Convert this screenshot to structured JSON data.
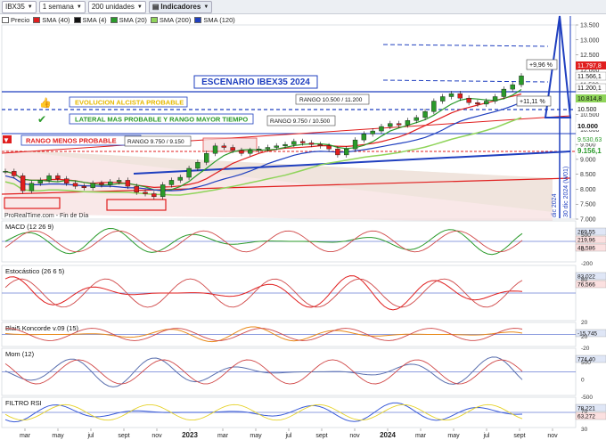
{
  "toolbar": {
    "symbol": "IBX35",
    "period": "1 semana",
    "units": "200 unidades",
    "indicators_label": "Indicadores"
  },
  "legend": [
    {
      "label": "Precio",
      "color": "#ffffff"
    },
    {
      "label": "SMA (40)",
      "color": "#e01e1e"
    },
    {
      "label": "SMA (4)",
      "color": "#111111"
    },
    {
      "label": "SMA (20)",
      "color": "#2a9a2a"
    },
    {
      "label": "SMA (200)",
      "color": "#8fd45a"
    },
    {
      "label": "SMA (120)",
      "color": "#1f3fbf"
    }
  ],
  "annotations": {
    "scenario_title": "ESCENARIO IBEX35 2024",
    "bullish_label": "EVOLUCION ALCISTA PROBABLE",
    "lateral_label": "LATERAL MAS PROBABLE Y RANGO MAYOR TIEMPO",
    "bearish_label": "RANGO MENOS PROBABLE",
    "range_1": "RANGO 10.500 / 11.200",
    "range_2": "RANGO 9.750 / 10.500",
    "range_3": "RANGO 9.750 / 9.150",
    "pct_up": "+9,96 %",
    "pct_up2": "+11,11 %",
    "date_marker_1": "dic 2024",
    "date_marker_2": "30 dic 2024 (W01)",
    "source": "ProRealTime.com - Fin de Día"
  },
  "price_labels": {
    "last": "11.797,8",
    "l2": "11.566,1",
    "l3": "11.200,1",
    "l4": "10.814,8",
    "l5": "10.500",
    "l6": "10.000",
    "l7": "9.530,63",
    "l8": "9.156,1"
  },
  "chart_data": {
    "type": "line",
    "title": "",
    "y_ticks": [
      "13.500",
      "13.000",
      "12.500",
      "12.000",
      "11.500",
      "11.000",
      "10.500",
      "10.000",
      "9.500",
      "9.000",
      "8.500",
      "8.000",
      "7.500",
      "7.000"
    ],
    "x_ticks": [
      "mar",
      "may",
      "jul",
      "sept",
      "nov",
      "2023",
      "mar",
      "may",
      "jul",
      "sept",
      "nov",
      "2024",
      "mar",
      "may",
      "jul",
      "sept",
      "nov"
    ],
    "price": [
      8600,
      8450,
      7950,
      8200,
      8300,
      8450,
      8350,
      8200,
      8100,
      8050,
      8200,
      8150,
      8250,
      8300,
      8100,
      7900,
      7850,
      7750,
      8150,
      8300,
      8400,
      8700,
      8900,
      9200,
      9450,
      9400,
      9300,
      9200,
      9300,
      9350,
      9400,
      9450,
      9500,
      9600,
      9550,
      9500,
      9450,
      9350,
      9150,
      9350,
      9650,
      9850,
      9950,
      10100,
      10200,
      10150,
      10300,
      10400,
      10600,
      10950,
      11100,
      11200,
      11050,
      10900,
      10850,
      10950,
      11100,
      11350,
      11500,
      11797
    ],
    "ylim": [
      7000,
      13500
    ],
    "series": [
      {
        "name": "SMA (40)",
        "color": "#e01e1e"
      },
      {
        "name": "SMA (20)",
        "color": "#2a9a2a"
      },
      {
        "name": "SMA (200)",
        "color": "#8fd45a"
      },
      {
        "name": "SMA (120)",
        "color": "#1f3fbf"
      }
    ]
  },
  "panels": [
    {
      "name": "MACD (12 26 9)",
      "values": [
        "269,55",
        "219,96",
        "49,586"
      ],
      "ticks": [
        "500",
        "0",
        "-200"
      ]
    },
    {
      "name": "Estocástico (26 6 5)",
      "values": [
        "83,022",
        "76,566"
      ],
      "ticks": [
        "80",
        "20"
      ]
    },
    {
      "name": "Blai5 Koncorde v.09 (15)",
      "values": [
        "-15,745"
      ],
      "ticks": [
        "20",
        "-20"
      ]
    },
    {
      "name": "Mom (12)",
      "values": [
        "774,40"
      ],
      "ticks": [
        "500",
        "0",
        "-500"
      ]
    },
    {
      "name": "FILTRO RSI",
      "values": [
        "78,221",
        "63,272"
      ],
      "ticks": [
        "70",
        "30"
      ]
    }
  ]
}
